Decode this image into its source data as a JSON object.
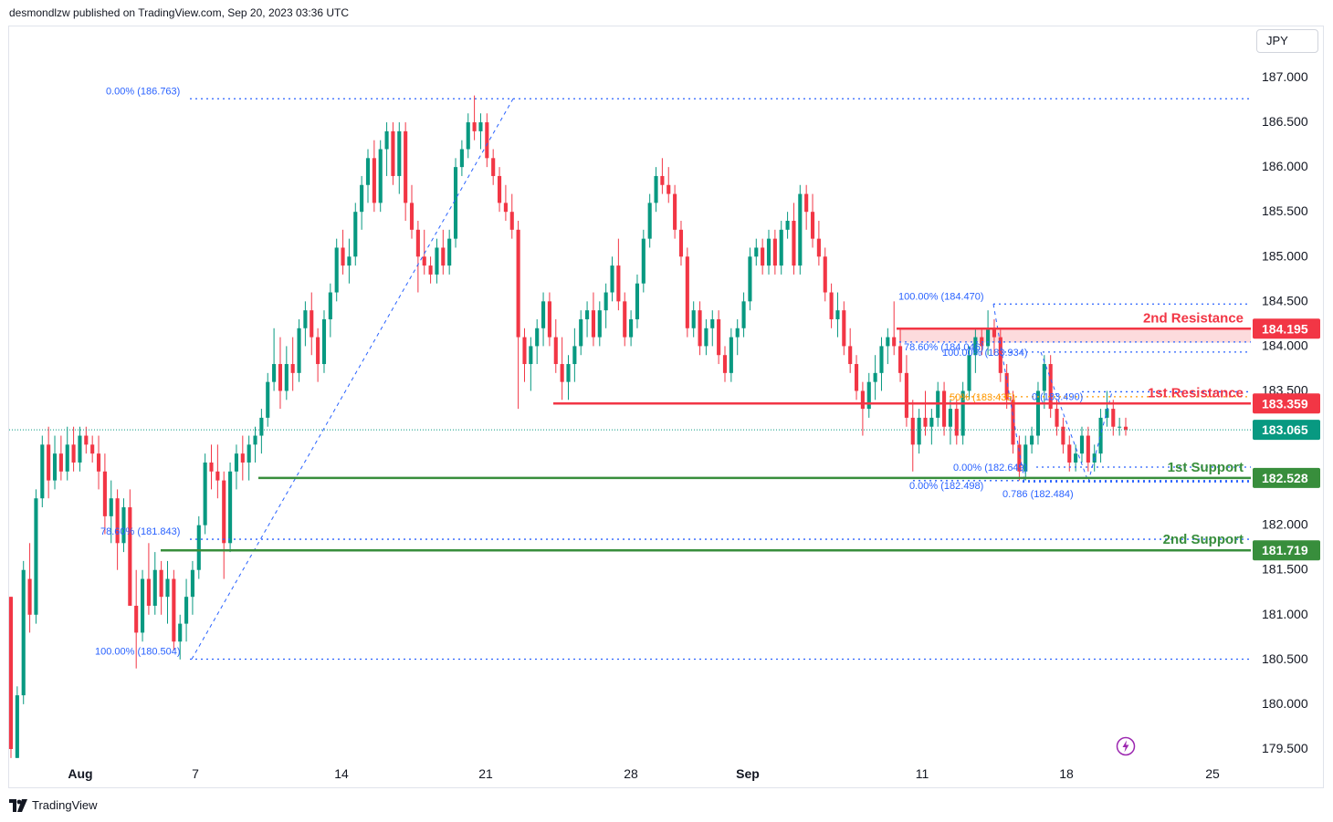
{
  "header": {
    "publisher": "desmondlzw published on TradingView.com, Sep 20, 2023 03:36 UTC"
  },
  "footer": {
    "brand": "TradingView",
    "logo_icon": "tradingview-logo-icon"
  },
  "toolbar": {
    "currency": "JPY"
  },
  "colors": {
    "up": "#089981",
    "down": "#f23645",
    "resistance": "#f23645",
    "support": "#388e3c",
    "fib": "#2962ff",
    "fib_orange": "#ff9800",
    "grid": "#f0f3fa"
  },
  "chart_data": {
    "type": "candlestick",
    "title": "",
    "y_axis": {
      "label": "",
      "ylim": [
        179.3,
        187.3
      ],
      "ticks": [
        179.5,
        180.0,
        180.5,
        181.0,
        181.5,
        182.0,
        182.5,
        183.0,
        183.5,
        184.0,
        184.5,
        185.0,
        185.5,
        186.0,
        186.5,
        187.0
      ],
      "tick_labels": [
        "179.500",
        "180.000",
        "180.500",
        "181.000",
        "181.500",
        "182.000",
        "182.500",
        "183.000",
        "183.500",
        "184.000",
        "184.500",
        "185.000",
        "185.500",
        "186.000",
        "186.500",
        "187.000"
      ]
    },
    "x_axis": {
      "label": "",
      "tick_labels": [
        "Aug",
        "7",
        "14",
        "21",
        "28",
        "Sep",
        "11",
        "18",
        "25"
      ],
      "tick_dates": [
        "2023-08-01",
        "2023-08-07",
        "2023-08-14",
        "2023-08-21",
        "2023-08-28",
        "2023-09-01",
        "2023-09-11",
        "2023-09-18",
        "2023-09-25"
      ]
    },
    "last_price": {
      "value": 183.065,
      "label": "183.065"
    },
    "levels": [
      {
        "name": "2nd Resistance",
        "value": 184.195,
        "label": "184.195",
        "kind": "resistance"
      },
      {
        "name": "1st Resistance",
        "value": 183.359,
        "label": "183.359",
        "kind": "resistance"
      },
      {
        "name": "1st Support",
        "value": 182.528,
        "label": "182.528",
        "kind": "support"
      },
      {
        "name": "2nd Support",
        "value": 181.719,
        "label": "181.719",
        "kind": "support"
      }
    ],
    "resistance_zone": [
      184.04,
      184.195
    ],
    "fib_labels": [
      {
        "text": "0.00% (186.763)",
        "value": 186.763
      },
      {
        "text": "78.60% (181.843)",
        "value": 181.843
      },
      {
        "text": "100.00% (180.504)",
        "value": 180.504
      },
      {
        "text": "100.00% (184.470)",
        "value": 184.47
      },
      {
        "text": "78.60% (184.046)",
        "value": 184.046
      },
      {
        "text": "100.00% (183.934)",
        "value": 183.934
      },
      {
        "text": "50% (183.435)",
        "value": 183.435
      },
      {
        "text": "0 (183.490)",
        "value": 183.49
      },
      {
        "text": "0.00% (182.649)",
        "value": 182.649
      },
      {
        "text": "0.00% (182.498)",
        "value": 182.498
      },
      {
        "text": "0.786 (182.484)",
        "value": 182.484
      }
    ],
    "candles": [
      [
        181.2,
        181.2,
        179.4,
        179.5
      ],
      [
        179.4,
        180.2,
        179.4,
        180.1
      ],
      [
        180.1,
        181.6,
        180.0,
        181.5
      ],
      [
        181.4,
        181.8,
        180.8,
        181.0
      ],
      [
        181.0,
        182.4,
        180.9,
        182.3
      ],
      [
        182.3,
        183.0,
        182.2,
        182.9
      ],
      [
        182.9,
        183.1,
        182.3,
        182.5
      ],
      [
        182.5,
        183.0,
        182.4,
        182.8
      ],
      [
        182.8,
        183.0,
        182.5,
        182.6
      ],
      [
        182.6,
        183.1,
        182.5,
        182.9
      ],
      [
        182.9,
        183.1,
        182.6,
        182.7
      ],
      [
        182.7,
        183.1,
        182.6,
        183.0
      ],
      [
        183.0,
        183.1,
        182.8,
        182.9
      ],
      [
        182.9,
        183.0,
        182.7,
        182.8
      ],
      [
        182.8,
        183.0,
        182.4,
        182.6
      ],
      [
        182.6,
        182.8,
        181.9,
        182.1
      ],
      [
        182.1,
        182.5,
        181.8,
        182.3
      ],
      [
        182.3,
        182.4,
        181.5,
        181.8
      ],
      [
        181.8,
        182.3,
        181.7,
        182.2
      ],
      [
        182.2,
        182.4,
        181.1,
        181.1
      ],
      [
        181.1,
        181.5,
        180.4,
        180.8
      ],
      [
        180.8,
        181.5,
        180.7,
        181.4
      ],
      [
        181.4,
        181.8,
        181.0,
        181.1
      ],
      [
        181.1,
        181.7,
        181.0,
        181.5
      ],
      [
        181.5,
        181.6,
        181.0,
        181.2
      ],
      [
        181.2,
        181.6,
        180.9,
        181.4
      ],
      [
        181.4,
        181.5,
        180.6,
        180.7
      ],
      [
        180.7,
        181.0,
        180.5,
        180.9
      ],
      [
        180.9,
        181.4,
        180.7,
        181.2
      ],
      [
        181.2,
        181.6,
        181.0,
        181.5
      ],
      [
        181.5,
        182.1,
        181.4,
        182.0
      ],
      [
        182.0,
        182.8,
        181.9,
        182.7
      ],
      [
        182.7,
        182.9,
        182.4,
        182.6
      ],
      [
        182.6,
        182.9,
        182.3,
        182.5
      ],
      [
        182.5,
        182.6,
        181.4,
        181.8
      ],
      [
        181.8,
        182.7,
        181.7,
        182.6
      ],
      [
        182.6,
        182.9,
        182.4,
        182.8
      ],
      [
        182.8,
        183.0,
        182.5,
        182.7
      ],
      [
        182.7,
        183.0,
        182.5,
        182.9
      ],
      [
        182.9,
        183.1,
        182.7,
        183.0
      ],
      [
        183.0,
        183.3,
        182.8,
        183.2
      ],
      [
        183.2,
        183.7,
        183.1,
        183.6
      ],
      [
        183.6,
        184.2,
        183.5,
        183.8
      ],
      [
        183.8,
        184.1,
        183.3,
        183.5
      ],
      [
        183.5,
        184.0,
        183.4,
        183.8
      ],
      [
        183.8,
        184.1,
        183.5,
        183.7
      ],
      [
        183.7,
        184.3,
        183.6,
        184.2
      ],
      [
        184.2,
        184.5,
        184.0,
        184.4
      ],
      [
        184.4,
        184.6,
        183.9,
        184.1
      ],
      [
        184.1,
        184.2,
        183.6,
        183.8
      ],
      [
        183.8,
        184.4,
        183.7,
        184.3
      ],
      [
        184.3,
        184.7,
        184.1,
        184.6
      ],
      [
        184.6,
        185.2,
        184.5,
        185.1
      ],
      [
        185.1,
        185.3,
        184.8,
        184.9
      ],
      [
        184.9,
        185.2,
        184.7,
        185.0
      ],
      [
        185.0,
        185.6,
        184.9,
        185.5
      ],
      [
        185.5,
        185.9,
        185.3,
        185.8
      ],
      [
        185.8,
        186.2,
        185.6,
        186.1
      ],
      [
        186.1,
        186.3,
        185.5,
        185.6
      ],
      [
        185.6,
        186.3,
        185.5,
        186.2
      ],
      [
        186.2,
        186.5,
        185.9,
        186.4
      ],
      [
        186.4,
        186.5,
        185.8,
        185.9
      ],
      [
        185.9,
        186.5,
        185.7,
        186.4
      ],
      [
        186.4,
        186.5,
        185.4,
        185.6
      ],
      [
        185.6,
        185.8,
        185.2,
        185.3
      ],
      [
        185.3,
        185.4,
        184.6,
        185.0
      ],
      [
        185.0,
        185.3,
        184.8,
        184.9
      ],
      [
        184.9,
        185.0,
        184.7,
        184.8
      ],
      [
        184.8,
        185.2,
        184.7,
        185.1
      ],
      [
        185.1,
        185.3,
        184.8,
        184.9
      ],
      [
        184.9,
        185.3,
        184.8,
        185.2
      ],
      [
        185.2,
        186.1,
        185.1,
        186.0
      ],
      [
        186.0,
        186.3,
        185.9,
        186.2
      ],
      [
        186.2,
        186.6,
        186.1,
        186.5
      ],
      [
        186.5,
        186.8,
        186.3,
        186.4
      ],
      [
        186.4,
        186.6,
        186.2,
        186.5
      ],
      [
        186.5,
        186.6,
        186.0,
        186.1
      ],
      [
        186.1,
        186.2,
        185.8,
        185.9
      ],
      [
        185.9,
        186.0,
        185.5,
        185.6
      ],
      [
        185.6,
        185.8,
        185.4,
        185.5
      ],
      [
        185.5,
        185.7,
        185.2,
        185.3
      ],
      [
        185.3,
        185.4,
        183.3,
        184.1
      ],
      [
        184.1,
        184.2,
        183.6,
        183.8
      ],
      [
        183.8,
        184.1,
        183.5,
        184.0
      ],
      [
        184.0,
        184.3,
        183.8,
        184.2
      ],
      [
        184.2,
        184.6,
        184.0,
        184.5
      ],
      [
        184.5,
        184.6,
        184.0,
        184.1
      ],
      [
        184.1,
        184.3,
        183.7,
        183.8
      ],
      [
        183.8,
        184.1,
        183.4,
        183.6
      ],
      [
        183.6,
        183.9,
        183.4,
        183.8
      ],
      [
        183.8,
        184.2,
        183.6,
        184.0
      ],
      [
        184.0,
        184.4,
        183.9,
        184.3
      ],
      [
        184.3,
        184.5,
        184.1,
        184.4
      ],
      [
        184.4,
        184.6,
        184.0,
        184.1
      ],
      [
        184.1,
        184.5,
        184.0,
        184.4
      ],
      [
        184.4,
        184.7,
        184.2,
        184.6
      ],
      [
        184.6,
        185.0,
        184.5,
        184.9
      ],
      [
        184.9,
        185.2,
        184.4,
        184.5
      ],
      [
        184.5,
        184.6,
        184.0,
        184.1
      ],
      [
        184.1,
        184.4,
        184.0,
        184.3
      ],
      [
        184.3,
        184.8,
        184.2,
        184.7
      ],
      [
        184.7,
        185.3,
        184.6,
        185.2
      ],
      [
        185.2,
        185.7,
        185.1,
        185.6
      ],
      [
        185.6,
        186.0,
        185.5,
        185.9
      ],
      [
        185.9,
        186.1,
        185.7,
        185.8
      ],
      [
        185.8,
        186.0,
        185.6,
        185.7
      ],
      [
        185.7,
        185.8,
        185.2,
        185.3
      ],
      [
        185.3,
        185.4,
        184.9,
        185.0
      ],
      [
        185.0,
        185.1,
        184.1,
        184.2
      ],
      [
        184.2,
        184.5,
        184.1,
        184.4
      ],
      [
        184.4,
        184.5,
        183.9,
        184.0
      ],
      [
        184.0,
        184.3,
        183.9,
        184.2
      ],
      [
        184.2,
        184.4,
        184.0,
        184.3
      ],
      [
        184.3,
        184.4,
        183.8,
        183.9
      ],
      [
        183.9,
        184.0,
        183.6,
        183.7
      ],
      [
        183.7,
        184.2,
        183.6,
        184.1
      ],
      [
        184.1,
        184.3,
        183.9,
        184.2
      ],
      [
        184.2,
        184.6,
        184.1,
        184.5
      ],
      [
        184.5,
        185.1,
        184.4,
        185.0
      ],
      [
        185.0,
        185.2,
        184.9,
        185.1
      ],
      [
        185.1,
        185.2,
        184.8,
        184.9
      ],
      [
        184.9,
        185.3,
        184.8,
        185.2
      ],
      [
        185.2,
        185.3,
        184.8,
        184.9
      ],
      [
        184.9,
        185.4,
        184.8,
        185.3
      ],
      [
        185.3,
        185.5,
        185.2,
        185.4
      ],
      [
        185.4,
        185.6,
        184.8,
        184.9
      ],
      [
        184.9,
        185.8,
        184.8,
        185.7
      ],
      [
        185.7,
        185.8,
        185.3,
        185.5
      ],
      [
        185.5,
        185.7,
        185.1,
        185.2
      ],
      [
        185.2,
        185.4,
        184.9,
        185.0
      ],
      [
        185.0,
        185.1,
        184.5,
        184.6
      ],
      [
        184.6,
        184.7,
        184.2,
        184.3
      ],
      [
        184.3,
        184.6,
        184.1,
        184.4
      ],
      [
        184.4,
        184.5,
        183.9,
        184.0
      ],
      [
        184.0,
        184.2,
        183.7,
        183.8
      ],
      [
        183.8,
        183.9,
        183.4,
        183.5
      ],
      [
        183.5,
        183.6,
        183.0,
        183.3
      ],
      [
        183.3,
        183.7,
        183.2,
        183.6
      ],
      [
        183.6,
        183.9,
        183.4,
        183.7
      ],
      [
        183.7,
        184.1,
        183.5,
        184.0
      ],
      [
        184.0,
        184.2,
        183.8,
        184.1
      ],
      [
        184.1,
        184.5,
        183.9,
        184.0
      ],
      [
        184.0,
        184.2,
        183.6,
        183.7
      ],
      [
        183.7,
        183.9,
        183.1,
        183.2
      ],
      [
        183.2,
        183.4,
        182.6,
        182.9
      ],
      [
        182.9,
        183.3,
        182.8,
        183.2
      ],
      [
        183.2,
        183.5,
        183.0,
        183.1
      ],
      [
        183.1,
        183.3,
        182.9,
        183.2
      ],
      [
        183.2,
        183.6,
        183.1,
        183.5
      ],
      [
        183.5,
        183.6,
        183.0,
        183.1
      ],
      [
        183.1,
        183.4,
        182.9,
        183.3
      ],
      [
        183.3,
        183.4,
        182.9,
        183.0
      ],
      [
        183.0,
        183.6,
        182.9,
        183.5
      ],
      [
        183.5,
        184.0,
        183.4,
        183.9
      ],
      [
        183.9,
        184.2,
        183.7,
        184.1
      ],
      [
        184.1,
        184.2,
        183.9,
        184.0
      ],
      [
        184.0,
        184.4,
        183.9,
        184.2
      ],
      [
        184.2,
        184.3,
        183.9,
        184.1
      ],
      [
        184.1,
        184.2,
        183.6,
        183.7
      ],
      [
        183.7,
        183.8,
        183.3,
        183.4
      ],
      [
        183.4,
        183.5,
        182.8,
        182.9
      ],
      [
        182.9,
        183.0,
        182.5,
        182.6
      ],
      [
        182.6,
        183.0,
        182.5,
        182.9
      ],
      [
        182.9,
        183.1,
        182.8,
        183.0
      ],
      [
        183.0,
        183.6,
        182.9,
        183.5
      ],
      [
        183.5,
        183.9,
        183.3,
        183.8
      ],
      [
        183.8,
        183.9,
        183.2,
        183.3
      ],
      [
        183.3,
        183.4,
        183.0,
        183.1
      ],
      [
        183.1,
        183.2,
        182.8,
        182.9
      ],
      [
        182.9,
        183.0,
        182.6,
        182.7
      ],
      [
        182.7,
        182.9,
        182.6,
        182.8
      ],
      [
        182.8,
        183.1,
        182.7,
        183.0
      ],
      [
        183.0,
        183.1,
        182.6,
        182.7
      ],
      [
        182.7,
        182.9,
        182.6,
        182.8
      ],
      [
        182.8,
        183.3,
        182.7,
        183.2
      ],
      [
        183.2,
        183.5,
        183.1,
        183.3
      ],
      [
        183.3,
        183.4,
        183.0,
        183.1
      ],
      [
        183.1,
        183.2,
        183.0,
        183.1
      ],
      [
        183.1,
        183.2,
        183.0,
        183.065
      ]
    ]
  }
}
